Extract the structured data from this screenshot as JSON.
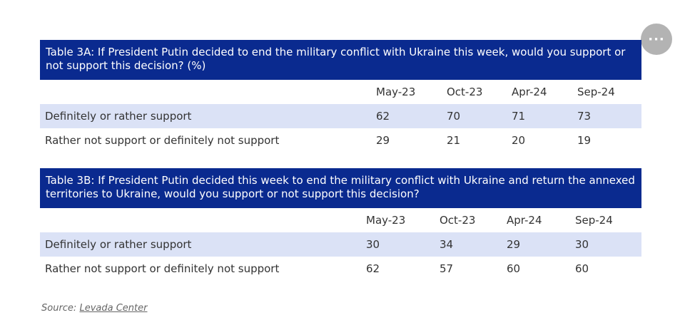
{
  "tableA": {
    "title": "Table 3A: If President Putin decided to end the military conflict with Ukraine this week, would you support or not support this decision? (%)",
    "columns": [
      "May-23",
      "Oct-23",
      "Apr-24",
      "Sep-24"
    ],
    "rows": [
      {
        "label": "Definitely or rather support",
        "values": [
          "62",
          "70",
          "71",
          "73"
        ]
      },
      {
        "label": "Rather not support or definitely not support",
        "values": [
          "29",
          "21",
          "20",
          "19"
        ]
      }
    ]
  },
  "tableB": {
    "title": "Table 3B: If President Putin decided this week to end the military conflict with Ukraine and return the annexed territories to Ukraine, would you support or not support this decision?",
    "columns": [
      "May-23",
      "Oct-23",
      "Apr-24",
      "Sep-24"
    ],
    "rows": [
      {
        "label": "Definitely or rather support",
        "values": [
          "30",
          "34",
          "29",
          "30"
        ]
      },
      {
        "label": "Rather not support or definitely not support",
        "values": [
          "62",
          "57",
          "60",
          "60"
        ]
      }
    ]
  },
  "source": {
    "prefix": "Source: ",
    "link": "Levada Center"
  },
  "more_button": {
    "glyph": "···"
  }
}
